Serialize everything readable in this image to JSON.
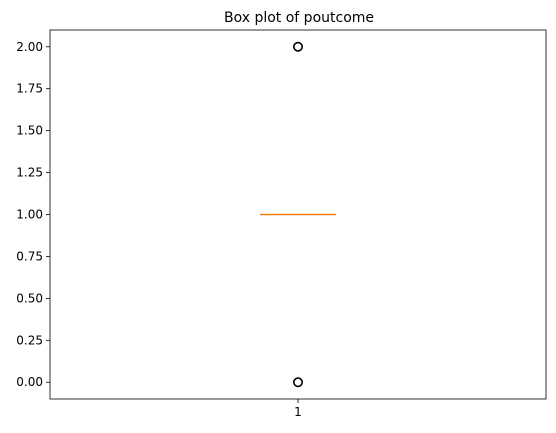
{
  "chart_data": {
    "type": "box",
    "title": "Box plot of poutcome",
    "xlabel": "",
    "ylabel": "",
    "categories": [
      "1"
    ],
    "ylim": [
      -0.1,
      2.1
    ],
    "yticks": [
      "0.00",
      "0.25",
      "0.50",
      "0.75",
      "1.00",
      "1.25",
      "1.50",
      "1.75",
      "2.00"
    ],
    "ytick_values": [
      0,
      0.25,
      0.5,
      0.75,
      1.0,
      1.25,
      1.5,
      1.75,
      2.0
    ],
    "boxes": [
      {
        "category": "1",
        "q1": 1.0,
        "median": 1.0,
        "q3": 1.0,
        "whisker_low": 1.0,
        "whisker_high": 1.0,
        "outliers": [
          0.0,
          2.0
        ]
      }
    ],
    "grid": false,
    "colors": {
      "median": "#ff7f0e",
      "box": "#000000",
      "outlier_edge": "#000000"
    }
  }
}
